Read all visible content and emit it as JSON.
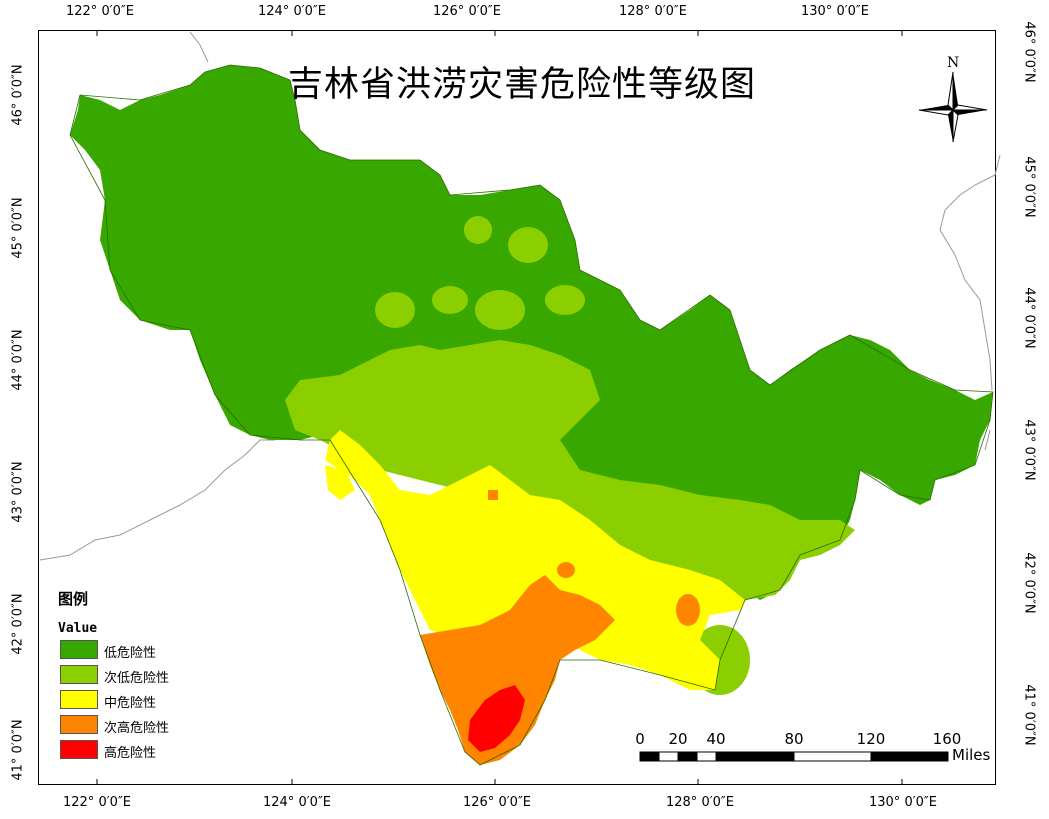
{
  "title": "吉林省洪涝灾害危险性等级图",
  "north_arrow": {
    "label": "N",
    "icon": "north-arrow-icon"
  },
  "graticule": {
    "longitudes": [
      "122° 0′0″E",
      "124° 0′0″E",
      "126° 0′0″E",
      "128° 0′0″E",
      "130° 0′0″E"
    ],
    "latitudes": [
      "46° 0′0″N",
      "45° 0′0″N",
      "44° 0′0″N",
      "43° 0′0″N",
      "42° 0′0″N",
      "41° 0′0″N"
    ]
  },
  "legend": {
    "title": "图例",
    "subtitle": "Value",
    "items": [
      {
        "label": "低危险性",
        "color": "#38a800"
      },
      {
        "label": "次低危险性",
        "color": "#8ccf00"
      },
      {
        "label": "中危险性",
        "color": "#ffff00"
      },
      {
        "label": "次高危险性",
        "color": "#ff8400"
      },
      {
        "label": "高危险性",
        "color": "#ff0000"
      }
    ]
  },
  "scale_bar": {
    "labels": [
      "0",
      "20",
      "40",
      "80",
      "120",
      "160"
    ],
    "unit": "Miles"
  }
}
